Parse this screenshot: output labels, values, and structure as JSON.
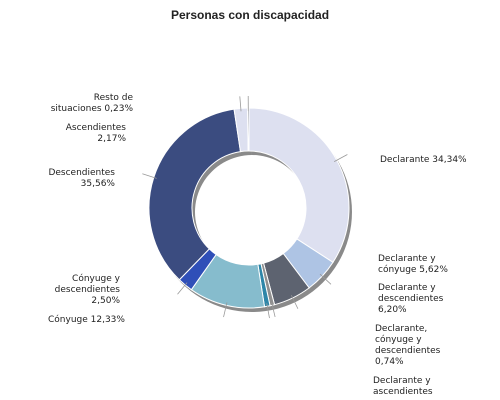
{
  "chart_data": {
    "type": "pie",
    "variant": "donut",
    "title": "Personas con discapacidad",
    "slices": [
      {
        "name": "Declarante",
        "value": 34.34,
        "label": [
          "Declarante 34,34%"
        ],
        "color": "#dde0f0"
      },
      {
        "name": "Declarante y cónyuge",
        "value": 5.62,
        "label": [
          "Declarante y",
          "cónyuge 5,62%"
        ],
        "color": "#aec4e4"
      },
      {
        "name": "Declarante y descendientes",
        "value": 6.2,
        "label": [
          "Declarante y",
          "descendientes",
          "6,20%"
        ],
        "color": "#5d6370"
      },
      {
        "name": "Declarante, cónyuge y descendientes",
        "value": 0.74,
        "label": [
          "Declarante,",
          "cónyuge y",
          "descendientes",
          "0,74%"
        ],
        "color": "#8f8f8f"
      },
      {
        "name": "Declarante y ascendientes",
        "value": 0.9,
        "label": [
          "Declarante y",
          "ascendientes"
        ],
        "color": "#2e86a8"
      },
      {
        "name": "Cónyuge",
        "value": 12.33,
        "label": [
          "Cónyuge 12,33%"
        ],
        "color": "#86bccd"
      },
      {
        "name": "Cónyuge y descendientes",
        "value": 2.5,
        "label": [
          "Cónyuge y",
          "descendientes",
          "2,50%"
        ],
        "color": "#2f4fb8"
      },
      {
        "name": "Descendientes",
        "value": 35.56,
        "label": [
          "Descendientes",
          "35,56%"
        ],
        "color": "#3b4c80"
      },
      {
        "name": "Ascendientes",
        "value": 2.17,
        "label": [
          "Ascendientes",
          "2,17%"
        ],
        "color": "#dde0f0"
      },
      {
        "name": "Resto de situaciones",
        "value": 0.23,
        "label": [
          "Resto de",
          "situaciones 0,23%"
        ],
        "color": "#5d6370"
      }
    ],
    "legend": "none"
  }
}
